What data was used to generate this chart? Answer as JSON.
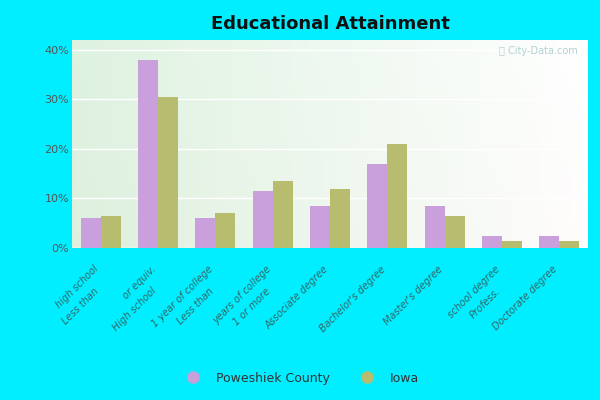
{
  "title": "Educational Attainment",
  "categories": [
    "Less than\nhigh school",
    "High school\nor equiv.",
    "Less than\n1 year of college",
    "1 or more\nyears of college",
    "Associate degree",
    "Bachelor's degree",
    "Master's degree",
    "Profess.\nschool degree",
    "Doctorate degree"
  ],
  "poweshiek": [
    6.0,
    38.0,
    6.0,
    11.5,
    8.5,
    17.0,
    8.5,
    2.5,
    2.5
  ],
  "iowa": [
    6.5,
    30.5,
    7.0,
    13.5,
    12.0,
    21.0,
    6.5,
    1.5,
    1.5
  ],
  "poweshiek_color": "#c9a0dc",
  "iowa_color": "#b8bc6e",
  "ylim": [
    0,
    42
  ],
  "yticks": [
    0,
    10,
    20,
    30,
    40
  ],
  "ytick_labels": [
    "0%",
    "10%",
    "20%",
    "30%",
    "40%"
  ],
  "outer_bg": "#00eeff",
  "plot_bg_top": "#e8f5f5",
  "plot_bg_bottom": "#dff0d8",
  "legend_labels": [
    "Poweshiek County",
    "Iowa"
  ],
  "watermark": "Ⓣ City-Data.com",
  "bar_width": 0.35
}
